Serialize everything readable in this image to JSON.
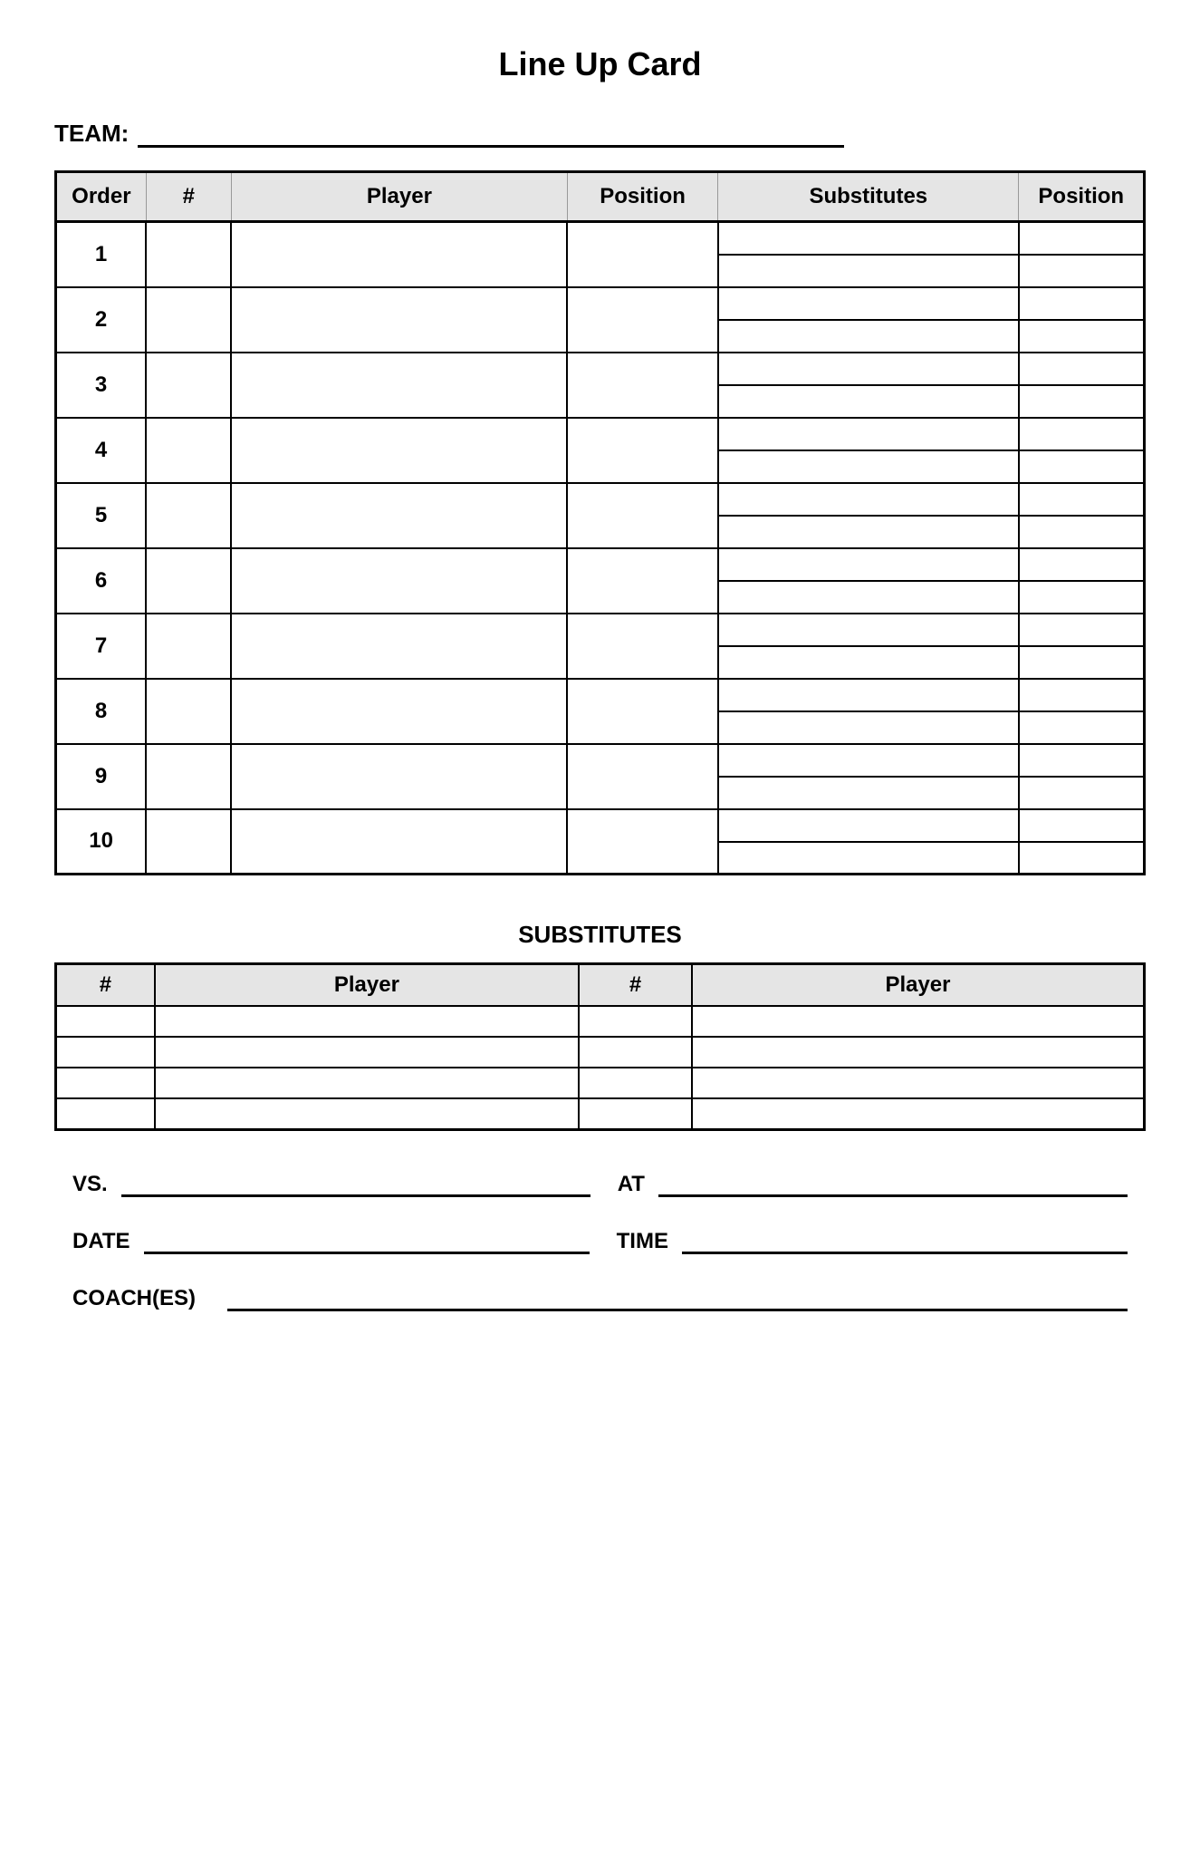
{
  "title": "Line Up Card",
  "team_label": "TEAM:",
  "lineup": {
    "columns": [
      "Order",
      "#",
      "Player",
      "Position",
      "Substitutes",
      "Position"
    ],
    "orders": [
      "1",
      "2",
      "3",
      "4",
      "5",
      "6",
      "7",
      "8",
      "9",
      "10"
    ]
  },
  "substitutes": {
    "title": "SUBSTITUTES",
    "columns": [
      "#",
      "Player",
      "#",
      "Player"
    ],
    "rows": 4
  },
  "footer": {
    "vs_label": "VS.",
    "at_label": "AT",
    "date_label": "DATE",
    "time_label": "TIME",
    "coaches_label": "COACH(ES)"
  },
  "colors": {
    "header_bg": "#e5e5e5",
    "border": "#000000",
    "background": "#ffffff",
    "text": "#000000"
  }
}
